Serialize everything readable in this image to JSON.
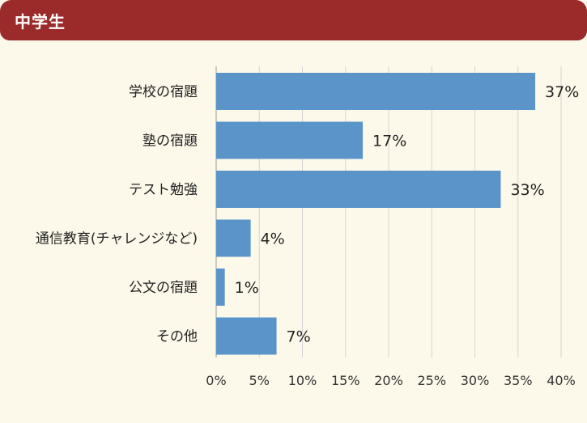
{
  "header": {
    "title": "中学生"
  },
  "colors": {
    "header_bg": "#9b2a2b",
    "bar": "#5a94c8",
    "background": "#fcf9ea",
    "grid": "#d4d4d4"
  },
  "chart_data": {
    "type": "bar",
    "orientation": "horizontal",
    "categories": [
      "学校の宿題",
      "塾の宿題",
      "テスト勉強",
      "通信教育(チャレンジなど)",
      "公文の宿題",
      "その他"
    ],
    "values": [
      37,
      17,
      33,
      4,
      1,
      7
    ],
    "value_labels": [
      "37%",
      "17%",
      "33%",
      "4%",
      "1%",
      "7%"
    ],
    "xlim": [
      0,
      40
    ],
    "xticks": [
      "0%",
      "5%",
      "10%",
      "15%",
      "20%",
      "25%",
      "30%",
      "35%",
      "40%"
    ],
    "grid": true,
    "title": "",
    "xlabel": "",
    "ylabel": ""
  }
}
